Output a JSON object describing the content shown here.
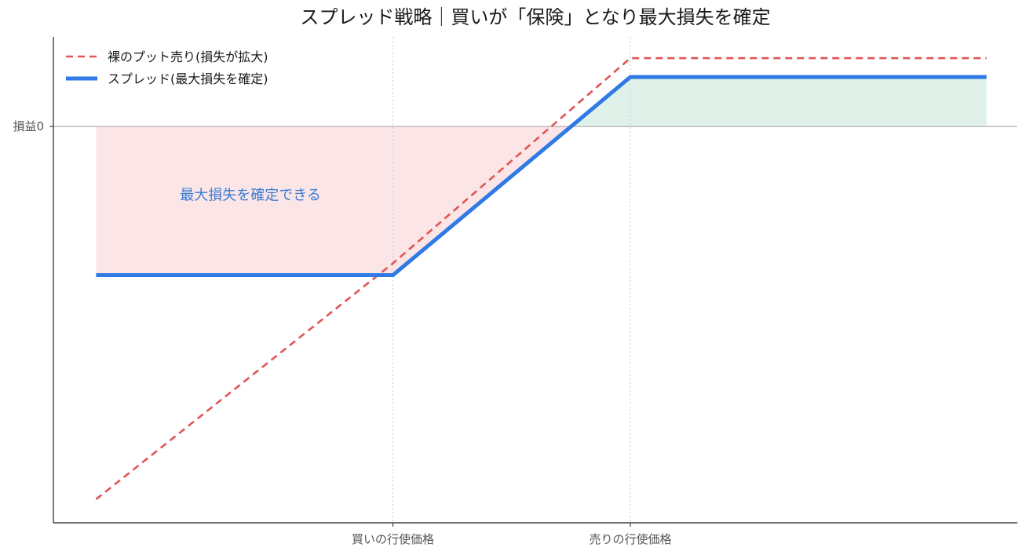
{
  "chart_data": {
    "type": "line",
    "title": "スプレッド戦略｜買いが「保険」となり最大損失を確定",
    "xlabel": "",
    "ylabel": "",
    "x_tick_labels": [
      {
        "x": 100,
        "label": "買いの行使価格"
      },
      {
        "x": 110,
        "label": "売りの行使価格"
      }
    ],
    "y_tick_labels": [
      {
        "y": 0,
        "label": "損益0"
      }
    ],
    "xlim": [
      85.7,
      126.3
    ],
    "ylim": [
      -16.8,
      3.8
    ],
    "x": [
      87.5,
      100,
      110,
      125
    ],
    "series": [
      {
        "name": "裸のプット売り(損失が拡大)",
        "values": [
          -15.8,
          -5.8,
          2.9,
          2.9
        ],
        "style": "dashed",
        "color": "#e05555"
      },
      {
        "name": "スプレッド(最大損失を確定)",
        "values": [
          -6.3,
          -6.3,
          2.1,
          2.1
        ],
        "style": "solid",
        "color": "#2f7ae5"
      }
    ],
    "shaded_regions": [
      {
        "name": "loss",
        "color": "#f8d4d6"
      },
      {
        "name": "profit",
        "color": "#cfe9df"
      }
    ],
    "annotations": [
      {
        "text": "最大損失を確定できる",
        "x": 94,
        "y": -3.1,
        "color": "#3a7bd5"
      }
    ],
    "vlines": [
      100,
      110
    ],
    "hline": 0,
    "grid": false,
    "legend_position": "top-left"
  }
}
